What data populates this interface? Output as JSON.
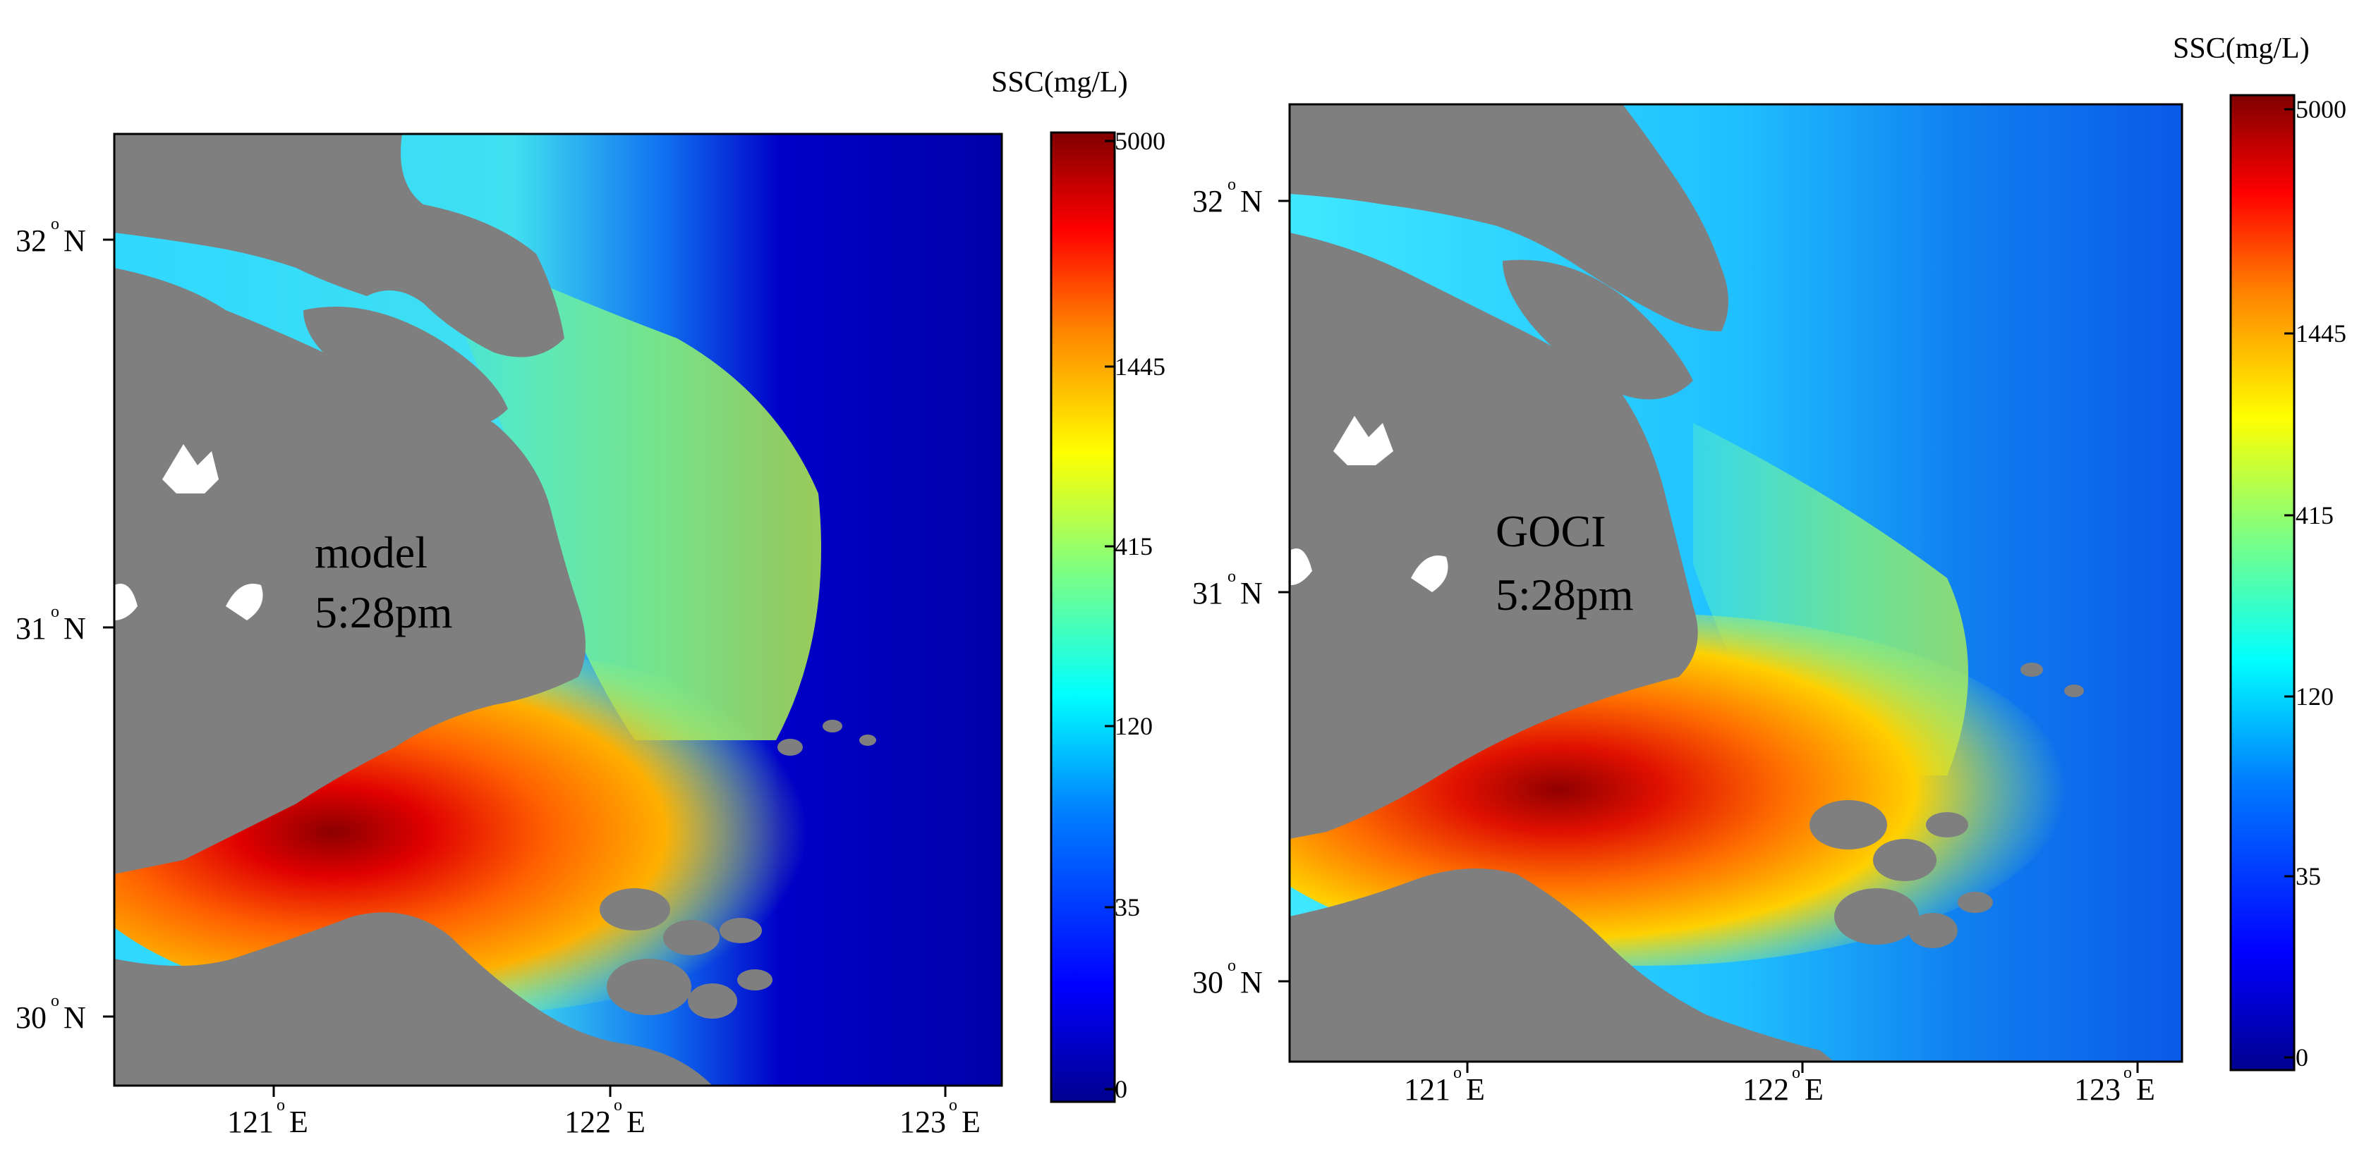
{
  "panels": [
    {
      "id": "model",
      "caption_line1": "model",
      "caption_line2": "5:28pm",
      "lat_ticks": [
        "32",
        "31",
        "30"
      ],
      "lon_ticks": [
        "121",
        "122",
        "123"
      ],
      "lat_suffix": "N",
      "lon_suffix": "E",
      "colorbar_title": "SSC(mg/L)",
      "colorbar_ticks": [
        "5000",
        "1445",
        "415",
        "120",
        "35",
        "0"
      ]
    },
    {
      "id": "goci",
      "caption_line1": "GOCI",
      "caption_line2": "5:28pm",
      "lat_ticks": [
        "32",
        "31",
        "30"
      ],
      "lon_ticks": [
        "121",
        "122",
        "123"
      ],
      "lat_suffix": "N",
      "lon_suffix": "E",
      "colorbar_title": "SSC(mg/L)",
      "colorbar_ticks": [
        "5000",
        "1445",
        "415",
        "120",
        "35",
        "0"
      ]
    }
  ],
  "colors": {
    "land": "#7f7f7f",
    "island": "#ffffff",
    "colormap": [
      "#00008f",
      "#0000ff",
      "#0080ff",
      "#00ffff",
      "#80ff80",
      "#ffff00",
      "#ff8000",
      "#ff0000",
      "#800000"
    ]
  }
}
